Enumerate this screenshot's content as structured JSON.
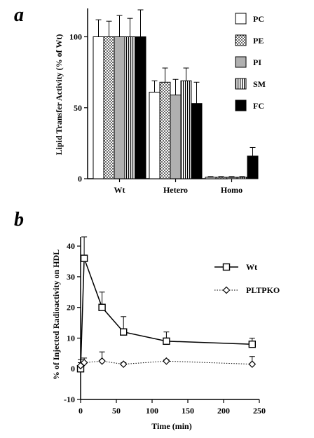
{
  "chart_data": [
    {
      "panel": "a",
      "type": "bar",
      "categories": [
        "Wt",
        "Hetero",
        "Homo"
      ],
      "series": [
        {
          "name": "PC",
          "values": [
            100,
            61,
            1
          ],
          "errors": [
            12,
            8,
            0.5
          ],
          "fill": "white"
        },
        {
          "name": "PE",
          "values": [
            100,
            68,
            1
          ],
          "errors": [
            11,
            10,
            0.5
          ],
          "fill": "dots"
        },
        {
          "name": "PI",
          "values": [
            100,
            59,
            1
          ],
          "errors": [
            15,
            11,
            0.5
          ],
          "fill": "gray"
        },
        {
          "name": "SM",
          "values": [
            100,
            69,
            1
          ],
          "errors": [
            13,
            9,
            0.5
          ],
          "fill": "vlines"
        },
        {
          "name": "FC",
          "values": [
            100,
            53,
            16
          ],
          "errors": [
            19,
            15,
            6
          ],
          "fill": "black"
        }
      ],
      "ylabel": "Lipid Transfer Activity (% of Wt)",
      "yticks": [
        "0",
        "50",
        "100"
      ],
      "ylim": [
        0,
        120
      ],
      "legend_position": "top-right"
    },
    {
      "panel": "b",
      "type": "line",
      "series": [
        {
          "name": "Wt",
          "marker": "square",
          "line": "solid",
          "x": [
            0,
            5,
            30,
            60,
            120,
            240
          ],
          "y": [
            0,
            36,
            20,
            12,
            9,
            8
          ],
          "errors": [
            2,
            7,
            5,
            5,
            3,
            2
          ]
        },
        {
          "name": "PLTPKO",
          "marker": "diamond",
          "line": "dotted",
          "x": [
            0,
            5,
            30,
            60,
            120,
            240
          ],
          "y": [
            1,
            2,
            2.5,
            1.5,
            2.5,
            1.5
          ],
          "errors": [
            2,
            1.5,
            3,
            0.5,
            0.5,
            2.5
          ]
        }
      ],
      "xlabel": "Time (min)",
      "ylabel": "% of Injected Radioactivity on HDL",
      "xticks": [
        "0",
        "50",
        "100",
        "150",
        "200",
        "250"
      ],
      "yticks": [
        "-10",
        "0",
        "10",
        "20",
        "30",
        "40"
      ],
      "xlim": [
        0,
        250
      ],
      "ylim": [
        -10,
        43
      ],
      "legend_position": "right"
    }
  ],
  "labels": {
    "panel_a": "a",
    "panel_b": "b"
  }
}
